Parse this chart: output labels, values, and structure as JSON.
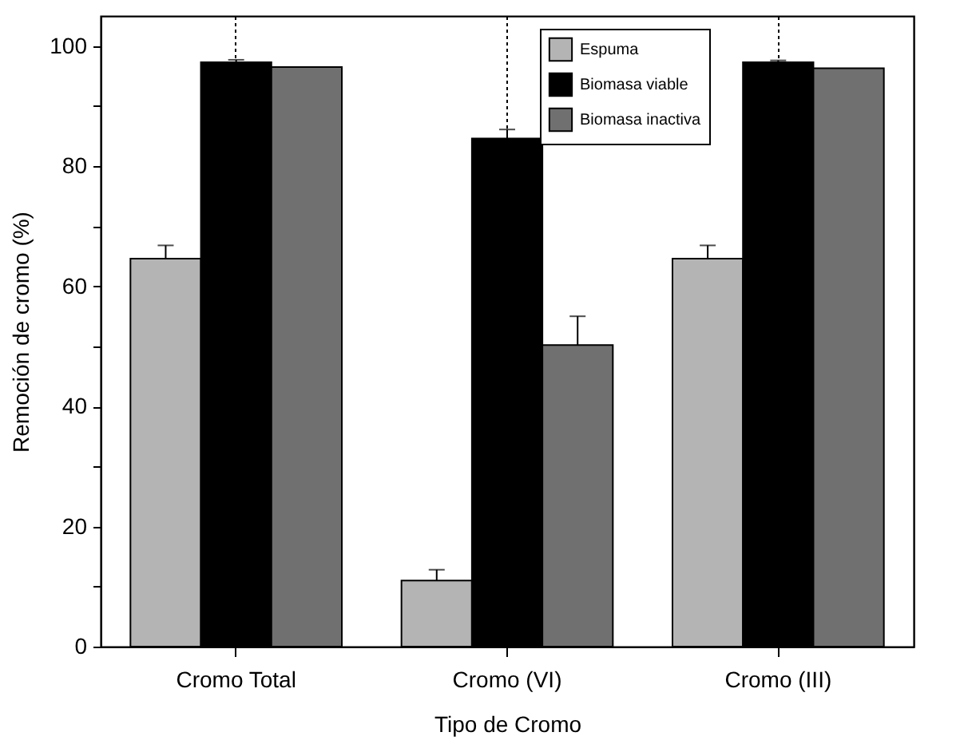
{
  "chart_data": {
    "type": "bar",
    "xlabel": "Tipo de Cromo",
    "ylabel": "Remoción de cromo (%)",
    "categories": [
      "Cromo Total",
      "Cromo (VI)",
      "Cromo (III)"
    ],
    "series": [
      {
        "name": "Espuma",
        "color": "#b4b4b4",
        "values": [
          64.6,
          11.0,
          64.6
        ],
        "errors": [
          [
            64.6,
            66.8
          ],
          [
            11.0,
            12.8
          ],
          [
            64.6,
            66.8
          ]
        ]
      },
      {
        "name": "Biomasa viable",
        "color": "#000000",
        "values": [
          97.3,
          84.6,
          97.3
        ],
        "errors": [
          [
            97.3,
            97.7
          ],
          [
            84.6,
            86.1
          ],
          [
            97.3,
            97.6
          ]
        ]
      },
      {
        "name": "Biomasa inactiva",
        "color": "#707070",
        "values": [
          96.5,
          50.2,
          96.3
        ],
        "errors": [
          null,
          [
            50.2,
            55.0
          ],
          null
        ]
      }
    ],
    "ylim": [
      0,
      105
    ],
    "yticks": [
      0,
      {
        "value": 10,
        "label": null
      },
      20,
      {
        "value": 30,
        "label": null
      },
      40,
      {
        "value": 50,
        "label": null
      },
      60,
      {
        "value": 70,
        "label": null
      },
      80,
      {
        "value": 90,
        "label": null
      },
      100
    ],
    "grid": "x",
    "legend": "top"
  }
}
